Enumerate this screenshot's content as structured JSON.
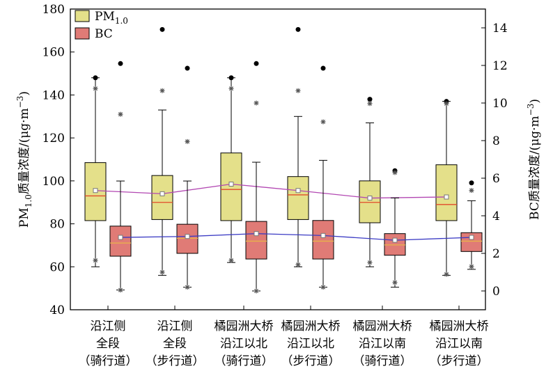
{
  "chart_data": {
    "type": "box",
    "categories": [
      [
        "沿江侧",
        "全段",
        "（骑行道）"
      ],
      [
        "沿江侧",
        "全段",
        "（步行道）"
      ],
      [
        "橘园洲大桥",
        "沿江以北",
        "（骑行道）"
      ],
      [
        "橘园洲大桥",
        "沿江以北",
        "（步行道）"
      ],
      [
        "橘园洲大桥",
        "沿江以南",
        "（骑行道）"
      ],
      [
        "橘园洲大桥",
        "沿江以南",
        "（步行道）"
      ]
    ],
    "ylabel_left": {
      "base": "PM",
      "sub": "1.0",
      "rest": "质量浓度/(μg·m",
      "sup": "−3",
      "close": ")"
    },
    "ylabel_right": {
      "base": "BC质量浓度/(μg·m",
      "sup": "−3",
      "close": ")"
    },
    "ylim_left": [
      40,
      180
    ],
    "yticks_left": [
      40,
      60,
      80,
      100,
      120,
      140,
      160,
      180
    ],
    "ylim_right": [
      -1,
      15
    ],
    "yticks_right": [
      0,
      2,
      4,
      6,
      8,
      10,
      12,
      14
    ],
    "legend": {
      "position": "top-left"
    },
    "series": [
      {
        "name": "PM",
        "name_sub": "1.0",
        "axis": "left",
        "box_color": "#e4e08a",
        "median_color": "#e24a2a",
        "mean_line_color": "#b247b2",
        "boxes": [
          {
            "whisker_low": 60,
            "q1": 81.5,
            "median": 93,
            "q3": 108.5,
            "whisker_high": 148,
            "mean": 95.5,
            "outliers_dot": [
              148
            ],
            "outliers_star": [
              143,
              63
            ]
          },
          {
            "whisker_low": 56,
            "q1": 82,
            "median": 90,
            "q3": 102.5,
            "whisker_high": 133,
            "mean": 94,
            "outliers_dot": [
              170.5
            ],
            "outliers_star": [
              142,
              57.5
            ]
          },
          {
            "whisker_low": 62,
            "q1": 81.5,
            "median": 96,
            "q3": 113,
            "whisker_high": 148,
            "mean": 98.5,
            "outliers_dot": [
              148
            ],
            "outliers_star": [
              143,
              63
            ]
          },
          {
            "whisker_low": 60,
            "q1": 82,
            "median": 93.5,
            "q3": 102,
            "whisker_high": 130,
            "mean": 95.5,
            "outliers_dot": [
              170.5
            ],
            "outliers_star": [
              142,
              61
            ]
          },
          {
            "whisker_low": 60,
            "q1": 80.5,
            "median": 90,
            "q3": 100,
            "whisker_high": 127,
            "mean": 92,
            "outliers_dot": [
              138
            ],
            "outliers_star": [
              136,
              62
            ]
          },
          {
            "whisker_low": 56,
            "q1": 81.5,
            "median": 89,
            "q3": 107.5,
            "whisker_high": 137,
            "mean": 92.5,
            "outliers_dot": [
              137
            ],
            "outliers_star": [
              136,
              56.5
            ]
          }
        ]
      },
      {
        "name": "BC",
        "axis": "right",
        "box_color": "#e07b76",
        "median_color": "#e8b44a",
        "mean_line_color": "#3b3bc4",
        "boxes": [
          {
            "whisker_low": 0.05,
            "q1": 1.85,
            "median": 2.55,
            "q3": 3.45,
            "whisker_high": 5.85,
            "mean": 2.85,
            "outliers_dot": [
              12.1
            ],
            "outliers_star": [
              9.4,
              0.05
            ]
          },
          {
            "whisker_low": 0.2,
            "q1": 2.0,
            "median": 2.8,
            "q3": 3.55,
            "whisker_high": 5.85,
            "mean": 2.9,
            "outliers_dot": [
              11.85
            ],
            "outliers_star": [
              7.95,
              0.2
            ]
          },
          {
            "whisker_low": 0.0,
            "q1": 1.7,
            "median": 2.65,
            "q3": 3.7,
            "whisker_high": 6.85,
            "mean": 3.05,
            "outliers_dot": [
              12.1
            ],
            "outliers_star": [
              10.0,
              0.0
            ]
          },
          {
            "whisker_low": 0.2,
            "q1": 1.7,
            "median": 2.65,
            "q3": 3.75,
            "whisker_high": 6.95,
            "mean": 2.95,
            "outliers_dot": [
              11.85
            ],
            "outliers_star": [
              9.0,
              0.2
            ]
          },
          {
            "whisker_low": 0.2,
            "q1": 1.9,
            "median": 2.45,
            "q3": 3.05,
            "whisker_high": 4.95,
            "mean": 2.7,
            "outliers_dot": [
              6.4
            ],
            "outliers_star": [
              6.3,
              0.45
            ]
          },
          {
            "whisker_low": 1.15,
            "q1": 2.1,
            "median": 2.65,
            "q3": 3.1,
            "whisker_high": 4.8,
            "mean": 2.85,
            "outliers_dot": [
              5.75
            ],
            "outliers_star": [
              5.35,
              1.3
            ]
          }
        ]
      }
    ]
  }
}
